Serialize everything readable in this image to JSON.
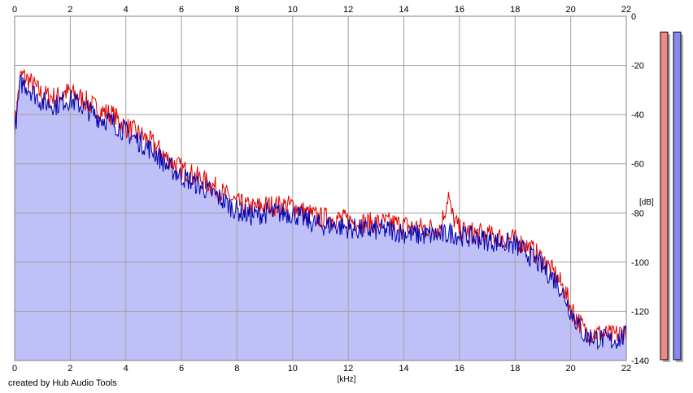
{
  "chart_data": {
    "type": "area",
    "title": "",
    "xlabel": "[kHz]",
    "ylabel": "[dB]",
    "xlim": [
      0,
      22
    ],
    "ylim": [
      -140,
      0
    ],
    "x_ticks": [
      "0",
      "2",
      "4",
      "6",
      "8",
      "10",
      "12",
      "14",
      "16",
      "18",
      "20",
      "22"
    ],
    "y_ticks": [
      "0",
      "-20",
      "-40",
      "-60",
      "-80",
      "-100",
      "-120",
      "-140"
    ],
    "grid": true,
    "series": [
      {
        "color": "#e00000",
        "x": [
          0,
          0.2,
          0.3,
          0.5,
          1,
          1.5,
          1.8,
          2,
          2.5,
          3,
          3.5,
          4,
          4.5,
          5,
          5.5,
          6,
          6.5,
          7,
          7.5,
          8,
          8.5,
          9,
          9.5,
          10,
          10.5,
          11,
          11.5,
          12,
          12.5,
          13,
          13.5,
          14,
          14.5,
          15,
          15.3,
          15.5,
          15.6,
          15.7,
          16,
          16.5,
          17,
          17.5,
          18,
          18.5,
          19,
          19.5,
          19.8,
          20,
          20.2,
          20.5,
          21,
          21.5,
          22
        ],
        "y": [
          -45,
          -25,
          -24,
          -26,
          -32,
          -33,
          -31,
          -31,
          -34,
          -38,
          -40,
          -45,
          -48,
          -52,
          -58,
          -62,
          -65,
          -68,
          -72,
          -76,
          -78,
          -77,
          -77,
          -77,
          -80,
          -82,
          -82,
          -83,
          -84,
          -84,
          -84,
          -85,
          -86,
          -86,
          -86,
          -78,
          -72,
          -80,
          -87,
          -88,
          -89,
          -90,
          -91,
          -94,
          -99,
          -106,
          -112,
          -118,
          -122,
          -128,
          -129,
          -130,
          -128
        ]
      },
      {
        "color": "#0000b0",
        "x": [
          0,
          0.2,
          0.3,
          0.5,
          1,
          1.5,
          1.8,
          2,
          2.5,
          3,
          3.5,
          4,
          4.5,
          5,
          5.5,
          6,
          6.5,
          7,
          7.5,
          8,
          8.5,
          9,
          9.5,
          10,
          10.5,
          11,
          11.5,
          12,
          12.5,
          13,
          13.5,
          14,
          14.5,
          15,
          15.3,
          15.5,
          15.6,
          15.7,
          16,
          16.5,
          17,
          17.5,
          18,
          18.5,
          19,
          19.5,
          19.8,
          20,
          20.2,
          20.5,
          21,
          21.5,
          22
        ],
        "y": [
          -47,
          -28,
          -27,
          -29,
          -35,
          -36,
          -34,
          -34,
          -37,
          -41,
          -43,
          -47,
          -51,
          -55,
          -61,
          -65,
          -68,
          -71,
          -75,
          -79,
          -81,
          -80,
          -80,
          -80,
          -83,
          -85,
          -85,
          -86,
          -87,
          -87,
          -87,
          -88,
          -89,
          -89,
          -89,
          -89,
          -88,
          -88,
          -89,
          -90,
          -91,
          -92,
          -93,
          -97,
          -102,
          -108,
          -114,
          -120,
          -124,
          -130,
          -131,
          -132,
          -130
        ]
      }
    ],
    "level_meters": [
      {
        "color": "#f08888",
        "level": 0.97
      },
      {
        "color": "#8888f0",
        "level": 0.97
      }
    ]
  },
  "credit": "created by Hub Audio Tools"
}
